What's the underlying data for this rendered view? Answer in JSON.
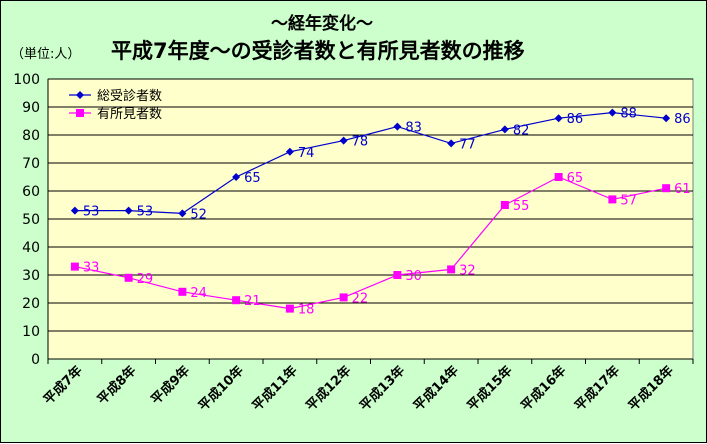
{
  "chart_data": {
    "type": "line",
    "subtitle": "～経年変化～",
    "unit_label": "（単位:人）",
    "title": "平成7年度～の受診者数と有所見者数の推移",
    "categories": [
      "平成7年",
      "平成8年",
      "平成9年",
      "平成10年",
      "平成11年",
      "平成12年",
      "平成13年",
      "平成14年",
      "平成15年",
      "平成16年",
      "平成17年",
      "平成18年"
    ],
    "ylim": [
      0,
      100
    ],
    "yticks": [
      0,
      10,
      20,
      30,
      40,
      50,
      60,
      70,
      80,
      90,
      100
    ],
    "grid": true,
    "legend_position": "top-left",
    "plot_background": "#ffffcc",
    "series": [
      {
        "name": "総受診者数",
        "color": "#0000cc",
        "marker": "diamond",
        "values": [
          53,
          53,
          52,
          65,
          74,
          78,
          83,
          77,
          82,
          86,
          88,
          86
        ]
      },
      {
        "name": "有所見者数",
        "color": "#ff00ff",
        "marker": "square",
        "values": [
          33,
          29,
          24,
          21,
          18,
          22,
          30,
          32,
          55,
          65,
          57,
          61
        ]
      }
    ]
  }
}
